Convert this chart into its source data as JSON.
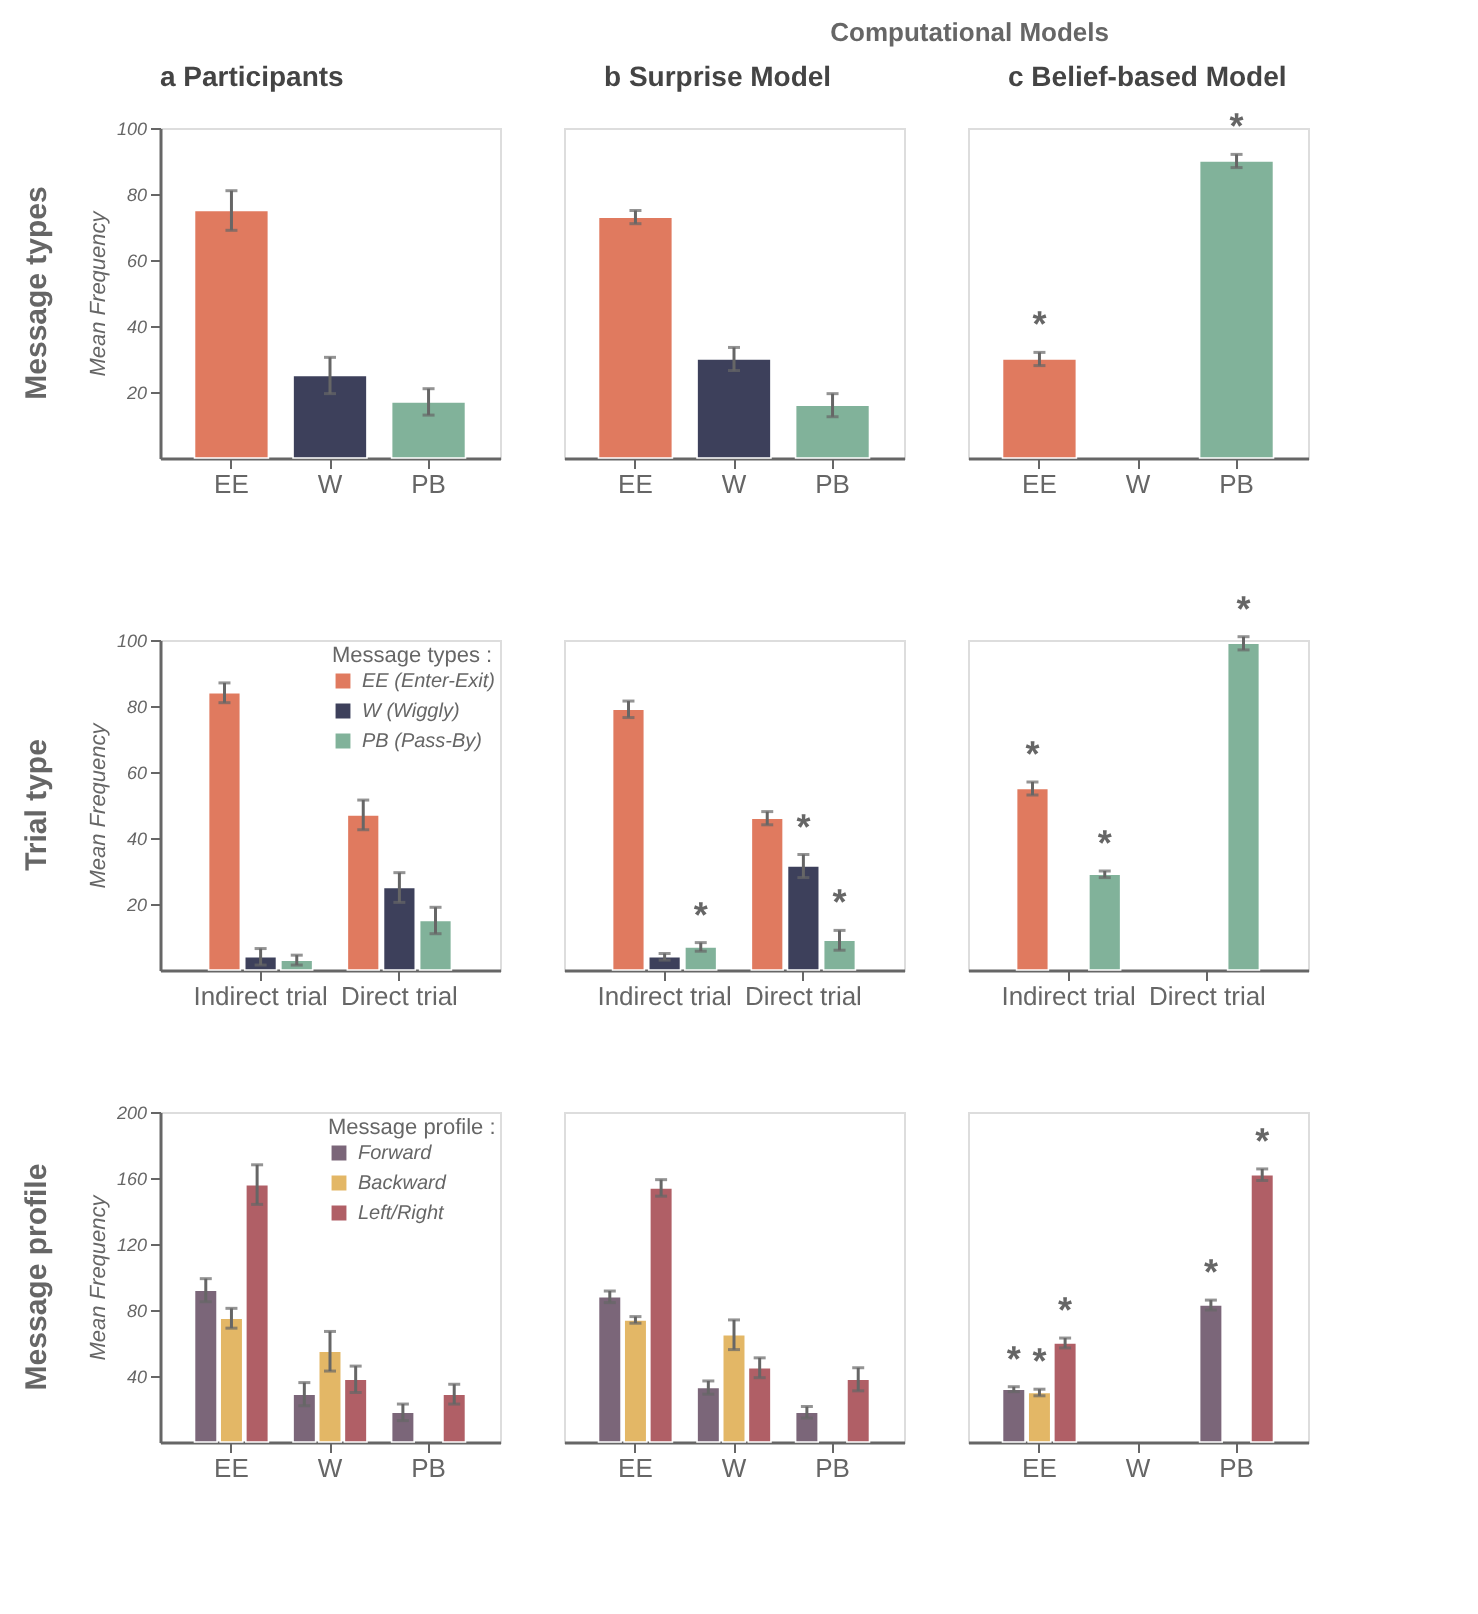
{
  "chart_data": [
    {
      "type": "bar",
      "title": "a   Participants",
      "ylabel": "Mean Frequency",
      "categories": [
        "EE",
        "W",
        "PB"
      ],
      "values": [
        75,
        25,
        17
      ],
      "colors": [
        "#e07a5f",
        "#3d405b",
        "#81b29a"
      ],
      "errors": [
        6,
        5.5,
        4
      ],
      "ylim": [
        0,
        100
      ],
      "yticks": [
        20,
        40,
        60,
        80,
        100
      ],
      "annotations": [
        "Message types"
      ]
    },
    {
      "type": "bar",
      "title": "b   Surprise Model",
      "categories": [
        "EE",
        "W",
        "PB"
      ],
      "values": [
        73,
        30,
        16
      ],
      "colors": [
        "#e07a5f",
        "#3d405b",
        "#81b29a"
      ],
      "errors": [
        2,
        3.5,
        3.5
      ],
      "ylim": [
        0,
        100
      ],
      "tick_labels": "x",
      "annotations": [
        "Computational Models"
      ]
    },
    {
      "type": "bar",
      "title": "c   Belief-based Model",
      "categories": [
        "EE",
        "W",
        "PB"
      ],
      "values": [
        30,
        null,
        90
      ],
      "colors": [
        "#e07a5f",
        "#3d405b",
        "#81b29a"
      ],
      "errors": [
        2,
        null,
        2
      ],
      "value_labels": [
        "*",
        null,
        "*"
      ],
      "ylim": [
        0,
        100
      ],
      "tick_labels": "x"
    },
    {
      "type": "bar",
      "ylabel": "Mean Frequency",
      "categories": [
        "Indirect trial",
        "Direct trial"
      ],
      "legend_title": "Message types :",
      "legend": "top right",
      "ylim": [
        0,
        100
      ],
      "yticks": [
        20,
        40,
        60,
        80,
        100
      ],
      "annotations": [
        "Trial type"
      ],
      "series": [
        {
          "name": "EE (Enter-Exit)",
          "color": "#e07a5f",
          "values": [
            84,
            47
          ],
          "errors": [
            3,
            4.5
          ]
        },
        {
          "name": "W (Wiggly)",
          "color": "#3d405b",
          "values": [
            4,
            25
          ],
          "errors": [
            2.5,
            4.5
          ]
        },
        {
          "name": "PB (Pass-By)",
          "color": "#81b29a",
          "values": [
            3,
            15
          ],
          "errors": [
            1.5,
            4
          ]
        }
      ]
    },
    {
      "type": "bar",
      "categories": [
        "Indirect trial",
        "Direct trial"
      ],
      "ylim": [
        0,
        100
      ],
      "tick_labels": "x",
      "series": [
        {
          "color": "#e07a5f",
          "values": [
            79,
            46
          ],
          "errors": [
            2.5,
            2
          ]
        },
        {
          "color": "#3d405b",
          "values": [
            4,
            31.5
          ],
          "errors": [
            1,
            3.5
          ],
          "value_labels": [
            null,
            "*"
          ]
        },
        {
          "color": "#81b29a",
          "values": [
            7,
            9
          ],
          "errors": [
            1.3,
            3
          ],
          "value_labels": [
            "*",
            "*"
          ]
        }
      ]
    },
    {
      "type": "bar",
      "categories": [
        "Indirect trial",
        "Direct trial"
      ],
      "ylim": [
        0,
        100
      ],
      "tick_labels": "x",
      "series": [
        {
          "color": "#e07a5f",
          "values": [
            55,
            null
          ],
          "errors": [
            2,
            null
          ],
          "value_labels": [
            "*",
            null
          ]
        },
        {
          "color": "#3d405b",
          "values": [
            null,
            null
          ]
        },
        {
          "color": "#81b29a",
          "values": [
            29,
            99
          ],
          "errors": [
            1,
            2
          ],
          "value_labels": [
            "*",
            "*"
          ]
        }
      ]
    },
    {
      "type": "bar",
      "ylabel": "Mean Frequency",
      "categories": [
        "EE",
        "W",
        "PB"
      ],
      "legend_title": "Message profile :",
      "legend": "top right",
      "ylim": [
        0,
        200
      ],
      "yticks": [
        40,
        80,
        120,
        160,
        200
      ],
      "annotations": [
        "Message profile"
      ],
      "series": [
        {
          "name": "Forward",
          "color": "#7b6679",
          "values": [
            92,
            29,
            18
          ],
          "errors": [
            7,
            7,
            5
          ]
        },
        {
          "name": "Backward",
          "color": "#e3b766",
          "values": [
            75,
            55,
            null
          ],
          "errors": [
            6,
            12,
            null
          ]
        },
        {
          "name": "Left/Right",
          "color": "#b05f66",
          "values": [
            156,
            38,
            29
          ],
          "errors": [
            12,
            8,
            6
          ]
        }
      ]
    },
    {
      "type": "bar",
      "categories": [
        "EE",
        "W",
        "PB"
      ],
      "ylim": [
        0,
        200
      ],
      "tick_labels": "x",
      "series": [
        {
          "color": "#7b6679",
          "values": [
            88,
            33,
            18
          ],
          "errors": [
            3.5,
            4,
            3.5
          ]
        },
        {
          "color": "#e3b766",
          "values": [
            74,
            65,
            null
          ],
          "errors": [
            2,
            9,
            null
          ]
        },
        {
          "color": "#b05f66",
          "values": [
            154,
            45,
            38
          ],
          "errors": [
            5,
            6,
            7
          ]
        }
      ]
    },
    {
      "type": "bar",
      "categories": [
        "EE",
        "W",
        "PB"
      ],
      "ylim": [
        0,
        200
      ],
      "tick_labels": "x",
      "series": [
        {
          "color": "#7b6679",
          "values": [
            32,
            null,
            83
          ],
          "errors": [
            1.5,
            null,
            3
          ],
          "value_labels": [
            "*",
            null,
            "*"
          ]
        },
        {
          "color": "#e3b766",
          "values": [
            30,
            null,
            null
          ],
          "errors": [
            2,
            null,
            null
          ],
          "value_labels": [
            "*",
            null,
            null
          ]
        },
        {
          "color": "#b05f66",
          "values": [
            60,
            null,
            162
          ],
          "errors": [
            3,
            null,
            3.5
          ],
          "value_labels": [
            "*",
            null,
            "*"
          ]
        }
      ]
    }
  ]
}
